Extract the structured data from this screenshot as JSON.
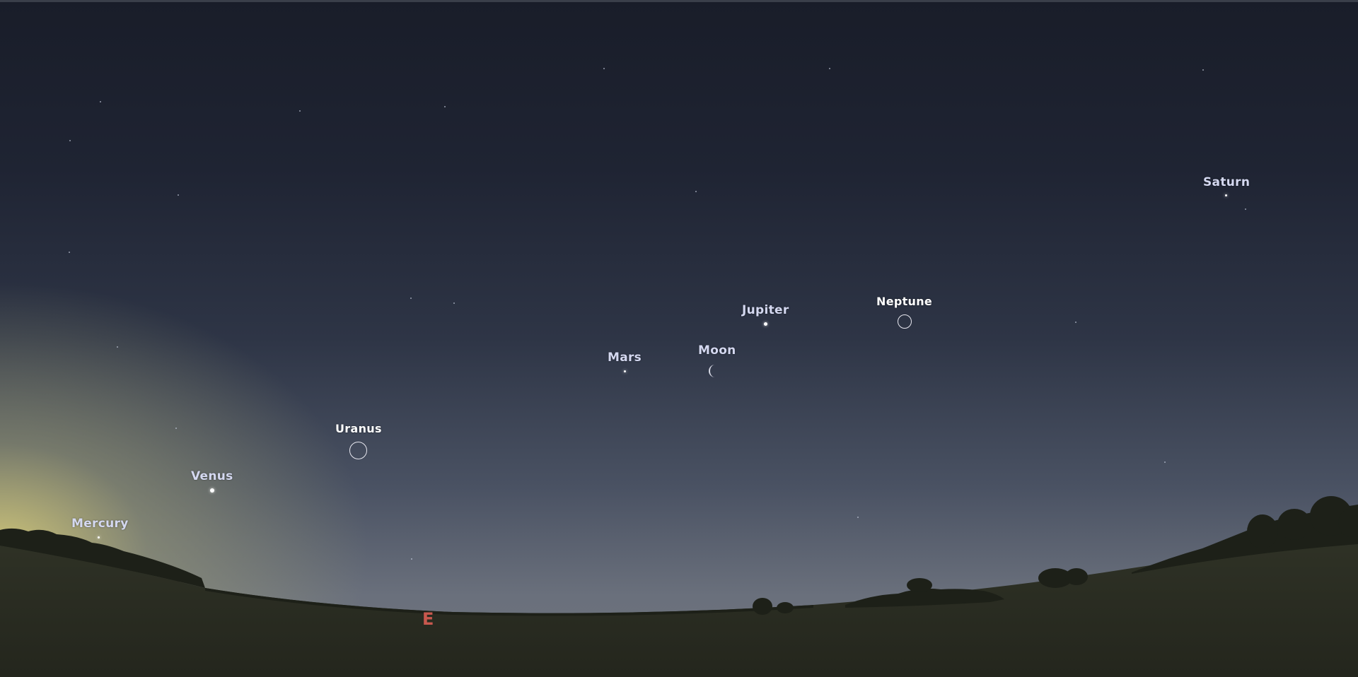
{
  "scene": {
    "description_type": "planetarium-sky-view"
  },
  "planets": [
    {
      "id": "mercury",
      "label": "Mercury"
    },
    {
      "id": "venus",
      "label": "Venus"
    },
    {
      "id": "uranus",
      "label": "Uranus"
    },
    {
      "id": "mars",
      "label": "Mars"
    },
    {
      "id": "moon",
      "label": "Moon"
    },
    {
      "id": "jupiter",
      "label": "Jupiter"
    },
    {
      "id": "neptune",
      "label": "Neptune"
    },
    {
      "id": "saturn",
      "label": "Saturn"
    }
  ],
  "compass": {
    "east": "E"
  },
  "colors": {
    "label": "#d4d8f0",
    "label_bright": "#ffffff",
    "cardinal": "#c8584e",
    "ground": "#2b2d22",
    "tree_silhouette": "#1d2018"
  }
}
